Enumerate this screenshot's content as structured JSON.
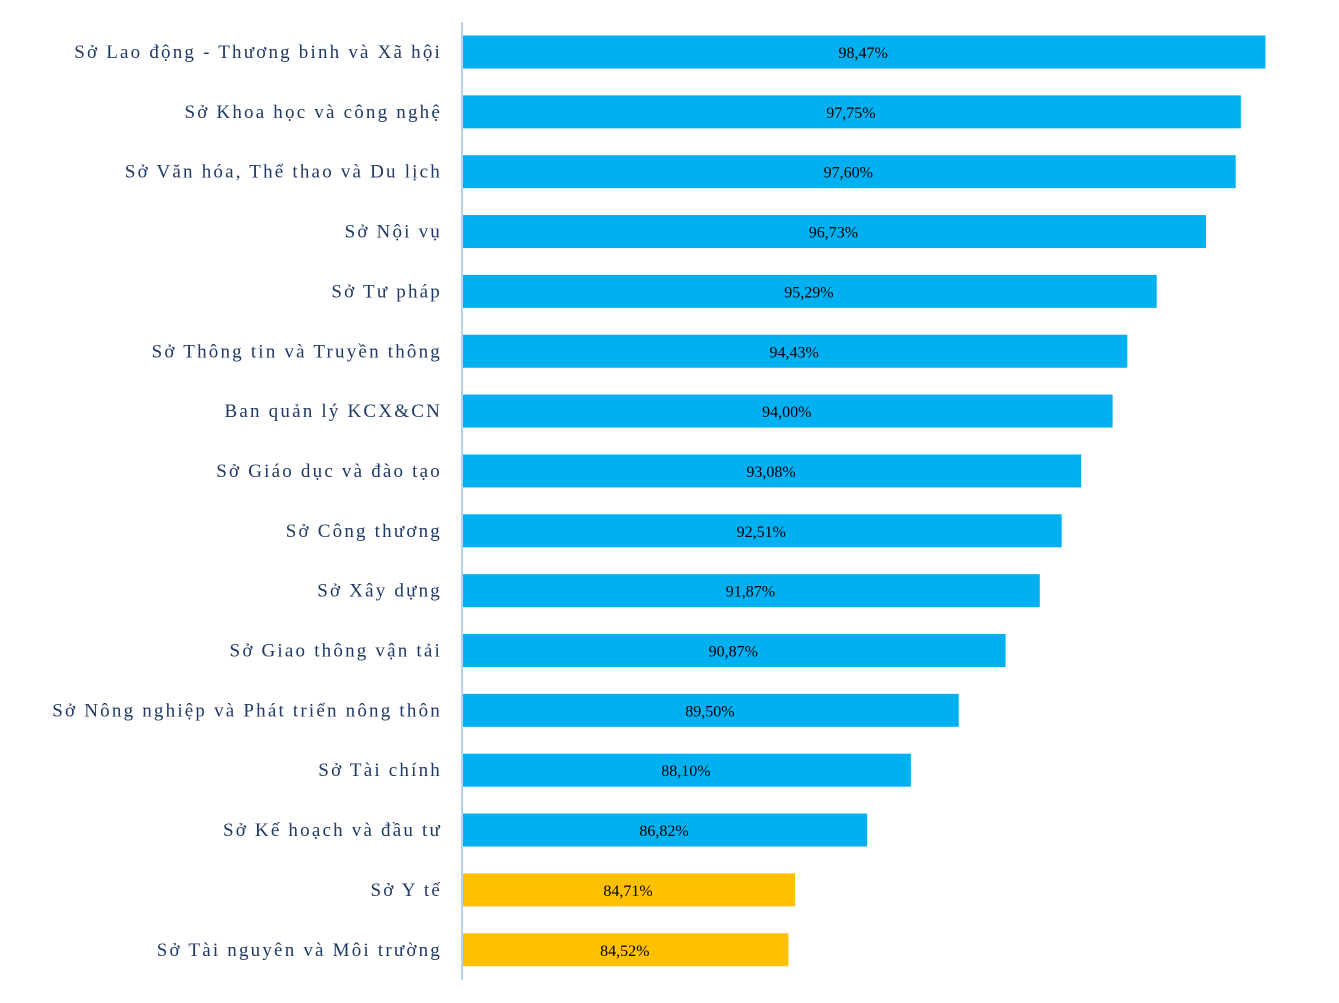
{
  "chart_data": {
    "type": "bar",
    "orientation": "horizontal",
    "title": "",
    "xlabel": "",
    "ylabel": "",
    "xlim": [
      75,
      100
    ],
    "grid": false,
    "categories": [
      "Sở Lao động - Thương binh và Xã hội",
      "Sở Khoa học và công nghệ",
      "Sở Văn hóa, Thể thao và Du lịch",
      "Sở Nội vụ",
      "Sở Tư pháp",
      "Sở Thông tin và Truyền thông",
      "Ban quản lý KCX&CN",
      "Sở Giáo dục và đào tạo",
      "Sở Công thương",
      "Sở Xây dựng",
      "Sở Giao thông vận tải",
      "Sở Nông nghiệp và Phát triển nông thôn",
      "Sở Tài chính",
      "Sở Kế hoạch và đầu tư",
      "Sở Y tế",
      "Sở Tài nguyên và Môi trường"
    ],
    "values": [
      98.47,
      97.75,
      97.6,
      96.73,
      95.29,
      94.43,
      94.0,
      93.08,
      92.51,
      91.87,
      90.87,
      89.5,
      88.1,
      86.82,
      84.71,
      84.52
    ],
    "value_labels": [
      "98,47%",
      "97,75%",
      "97,60%",
      "96,73%",
      "95,29%",
      "94,43%",
      "94,00%",
      "93,08%",
      "92,51%",
      "91,87%",
      "90,87%",
      "89,50%",
      "88,10%",
      "86,82%",
      "84,71%",
      "84,52%"
    ],
    "highlight": [
      false,
      false,
      false,
      false,
      false,
      false,
      false,
      false,
      false,
      false,
      false,
      false,
      false,
      false,
      true,
      true
    ],
    "colors": {
      "bar": "#00B0F0",
      "highlight": "#FFC000",
      "axis": "#9DC3E6",
      "label": "#1F3864"
    }
  }
}
